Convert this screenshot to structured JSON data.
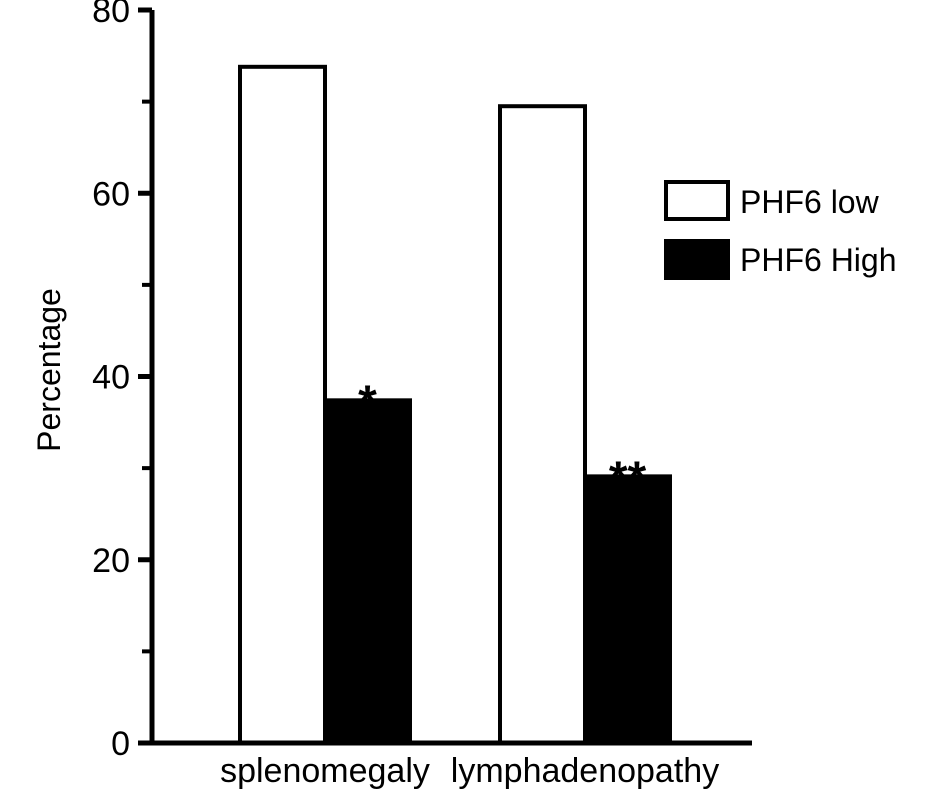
{
  "chart_data": {
    "type": "bar",
    "title": "",
    "xlabel": "",
    "ylabel": "Percentage",
    "ylim": [
      0,
      80
    ],
    "yticks": [
      "0",
      "20",
      "40",
      "60",
      "80"
    ],
    "categories": [
      "splenomegaly",
      "lymphadenopathy"
    ],
    "series": [
      {
        "name": "PHF6 low",
        "values": [
          73.8,
          69.5
        ],
        "color": "#ffffff"
      },
      {
        "name": "PHF6 High",
        "values": [
          37.4,
          29.1
        ],
        "color": "#000000"
      }
    ],
    "annotations": [
      "*",
      "**"
    ],
    "legend": "top-right",
    "grid": false
  }
}
